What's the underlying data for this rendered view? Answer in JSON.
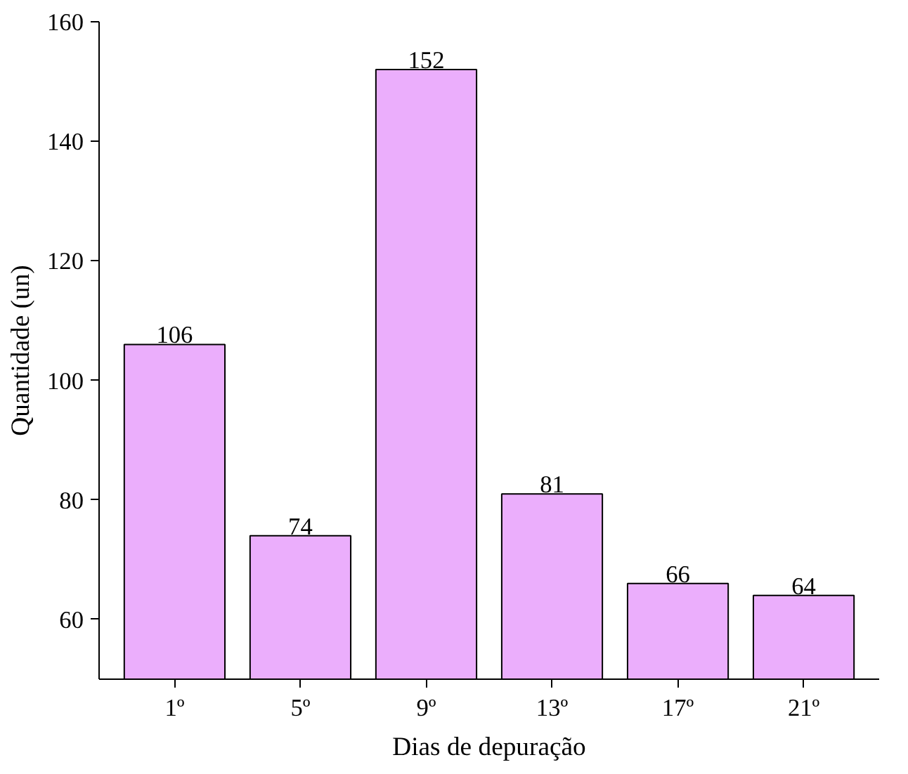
{
  "chart_data": {
    "type": "bar",
    "xlabel": "Dias de depuração",
    "ylabel": "Quantidade (un)",
    "categories": [
      "1º",
      "5º",
      "9º",
      "13º",
      "17º",
      "21º"
    ],
    "values": [
      106,
      74,
      152,
      81,
      66,
      64
    ],
    "color": "#ebaefc",
    "ylim": [
      50,
      160
    ],
    "yticks": [
      60,
      80,
      100,
      120,
      140,
      160
    ],
    "data_labels": true,
    "grid": false
  }
}
